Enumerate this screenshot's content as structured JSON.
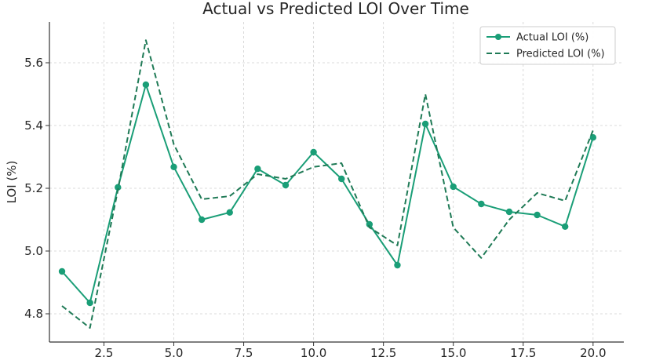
{
  "chart_data": {
    "type": "line",
    "title": "Actual vs Predicted LOI Over Time",
    "xlabel": "",
    "ylabel": "LOI (%)",
    "xlim": [
      0.55,
      21.1
    ],
    "ylim": [
      4.71,
      5.73
    ],
    "x_ticks": [
      2.5,
      5.0,
      7.5,
      10.0,
      12.5,
      15.0,
      17.5,
      20.0
    ],
    "x_tick_labels": [
      "2.5",
      "5.0",
      "7.5",
      "10.0",
      "12.5",
      "15.0",
      "17.5",
      "20.0"
    ],
    "y_ticks": [
      4.8,
      5.0,
      5.2,
      5.4,
      5.6
    ],
    "y_tick_labels": [
      "4.8",
      "5.0",
      "5.2",
      "5.4",
      "5.6"
    ],
    "grid": true,
    "legend_position": "top-right",
    "x": [
      1,
      2,
      3,
      4,
      5,
      6,
      7,
      8,
      9,
      10,
      11,
      12,
      13,
      14,
      15,
      16,
      17,
      18,
      19,
      20
    ],
    "series": [
      {
        "name": "Actual LOI (%)",
        "style": "solid-marker",
        "color": "#1a9e77",
        "values": [
          4.935,
          4.835,
          5.203,
          5.53,
          5.268,
          5.1,
          5.123,
          5.262,
          5.21,
          5.315,
          5.23,
          5.085,
          4.955,
          5.405,
          5.205,
          5.15,
          5.125,
          5.115,
          5.078,
          5.362
        ]
      },
      {
        "name": "Predicted LOI (%)",
        "style": "dashed",
        "color": "#1f7a56",
        "values": [
          4.825,
          4.755,
          5.195,
          5.672,
          5.34,
          5.165,
          5.175,
          5.245,
          5.23,
          5.268,
          5.28,
          5.075,
          5.018,
          5.5,
          5.075,
          4.978,
          5.1,
          5.185,
          5.16,
          5.385
        ]
      }
    ]
  }
}
